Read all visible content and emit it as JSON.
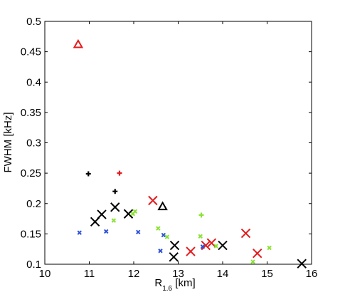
{
  "chart_data": {
    "type": "scatter",
    "title": "",
    "xlabel": {
      "main": "R",
      "sub": "1.6",
      "unit": " [km]"
    },
    "ylabel": "FWHM  [kHz]",
    "xlim": [
      10,
      16
    ],
    "ylim": [
      0.1,
      0.5
    ],
    "xticks": [
      "10",
      "11",
      "12",
      "13",
      "14",
      "15",
      "16"
    ],
    "yticks": [
      "0.1",
      "0.15",
      "0.2",
      "0.25",
      "0.3",
      "0.35",
      "0.4",
      "0.45",
      "0.5"
    ],
    "grid": false,
    "legend": "none",
    "series": [
      {
        "color": "#e31a1c",
        "marker": "triangle",
        "points": [
          [
            10.75,
            0.462
          ]
        ]
      },
      {
        "color": "#000000",
        "marker": "triangle",
        "points": [
          [
            12.65,
            0.195
          ]
        ]
      },
      {
        "color": "#000000",
        "marker": "plus",
        "points": [
          [
            10.98,
            0.249
          ],
          [
            11.58,
            0.22
          ]
        ]
      },
      {
        "color": "#e31a1c",
        "marker": "plus",
        "points": [
          [
            11.68,
            0.25
          ]
        ]
      },
      {
        "color": "#000000",
        "marker": "x-large",
        "points": [
          [
            11.13,
            0.17
          ],
          [
            11.28,
            0.182
          ],
          [
            11.58,
            0.194
          ],
          [
            11.88,
            0.183
          ],
          [
            12.92,
            0.131
          ],
          [
            12.9,
            0.112
          ],
          [
            14.0,
            0.131
          ],
          [
            15.78,
            0.101
          ]
        ]
      },
      {
        "color": "#e31a1c",
        "marker": "x-large",
        "points": [
          [
            12.43,
            0.205
          ],
          [
            13.28,
            0.121
          ],
          [
            13.62,
            0.131
          ],
          [
            13.75,
            0.135
          ],
          [
            14.52,
            0.151
          ],
          [
            14.78,
            0.118
          ]
        ]
      },
      {
        "color": "#2b4fd8",
        "marker": "x-small",
        "points": [
          [
            10.78,
            0.152
          ],
          [
            11.38,
            0.154
          ],
          [
            12.1,
            0.153
          ],
          [
            12.6,
            0.122
          ],
          [
            12.67,
            0.148
          ],
          [
            13.55,
            0.129
          ]
        ]
      },
      {
        "color": "#8ae234",
        "marker": "x-small",
        "points": [
          [
            11.55,
            0.172
          ],
          [
            11.98,
            0.183
          ],
          [
            12.03,
            0.187
          ],
          [
            12.55,
            0.159
          ],
          [
            12.75,
            0.145
          ],
          [
            13.5,
            0.146
          ],
          [
            13.85,
            0.13
          ],
          [
            14.68,
            0.104
          ],
          [
            15.05,
            0.127
          ]
        ]
      },
      {
        "color": "#8ae234",
        "marker": "plus",
        "points": [
          [
            13.52,
            0.181
          ]
        ]
      }
    ]
  }
}
